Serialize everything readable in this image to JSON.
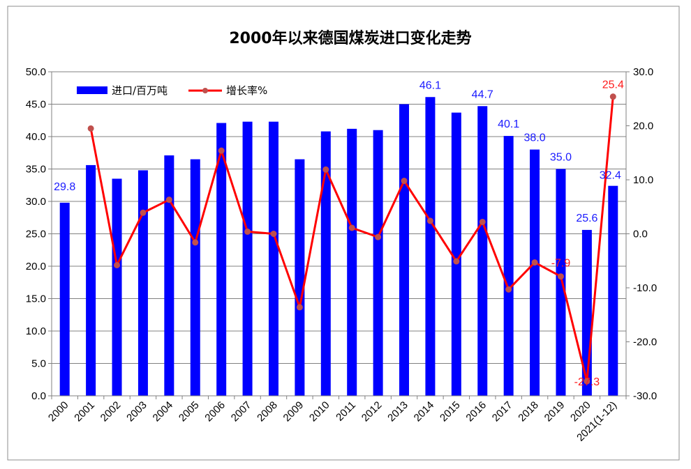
{
  "chart_data": {
    "type": "bar",
    "title": "2000年以来德国煤炭进口变化走势",
    "categories": [
      "2000",
      "2001",
      "2002",
      "2003",
      "2004",
      "2005",
      "2006",
      "2007",
      "2008",
      "2009",
      "2010",
      "2011",
      "2012",
      "2013",
      "2014",
      "2015",
      "2016",
      "2017",
      "2018",
      "2019",
      "2020",
      "2021(1-12)"
    ],
    "ylim_left": [
      0,
      50
    ],
    "yticks_left": [
      "0.0",
      "5.0",
      "10.0",
      "15.0",
      "20.0",
      "25.0",
      "30.0",
      "35.0",
      "40.0",
      "45.0",
      "50.0"
    ],
    "ylim_right": [
      -30,
      30
    ],
    "yticks_right": [
      "-30.0",
      "-20.0",
      "-10.0",
      "0.0",
      "10.0",
      "20.0",
      "30.0"
    ],
    "grid": true,
    "legend_placement": "top-left",
    "series": [
      {
        "name": "进口/百万吨",
        "type": "bar",
        "axis": "left",
        "color": "#0000ff",
        "values": [
          29.8,
          35.6,
          33.5,
          34.8,
          37.1,
          36.5,
          42.1,
          42.3,
          42.3,
          36.5,
          40.8,
          41.2,
          41.0,
          45.0,
          46.1,
          43.7,
          44.7,
          40.1,
          38.0,
          35.0,
          25.6,
          32.4
        ],
        "labels": [
          "29.8",
          "",
          "",
          "",
          "",
          "",
          "",
          "",
          "",
          "",
          "",
          "",
          "",
          "",
          "46.1",
          "",
          "44.7",
          "40.1",
          "38.0",
          "35.0",
          "25.6",
          "32.4"
        ]
      },
      {
        "name": "增长率%",
        "type": "line",
        "axis": "right",
        "color": "#ff0000",
        "marker_color": "#c0504d",
        "values": [
          null,
          19.5,
          -5.8,
          3.9,
          6.3,
          -1.6,
          15.4,
          0.4,
          0.0,
          -13.6,
          11.9,
          1.1,
          -0.6,
          9.8,
          2.4,
          -5.1,
          2.2,
          -10.3,
          -5.3,
          -7.9,
          -27.3,
          25.4
        ],
        "labels": [
          "",
          "",
          "",
          "",
          "",
          "",
          "",
          "",
          "",
          "",
          "",
          "",
          "",
          "",
          "",
          "",
          "",
          "",
          "",
          "-7.9",
          "-27.3",
          "25.4"
        ]
      }
    ]
  }
}
